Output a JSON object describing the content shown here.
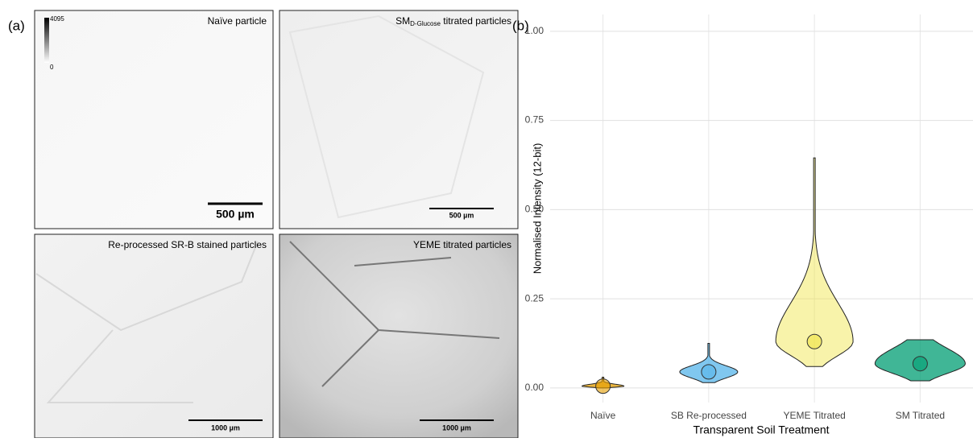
{
  "panel_a": {
    "label": "(a)",
    "colorbar": {
      "max": 4095,
      "min": 0
    },
    "images": [
      {
        "title": "Naïve particle",
        "scale_bar": "500 µm"
      },
      {
        "title_main": "SM",
        "title_sub": "D-Glucose",
        "title_rest": " titrated particles",
        "scale_bar": "500 µm"
      },
      {
        "title": "Re-processed SR-B stained particles",
        "scale_bar": "1000 µm"
      },
      {
        "title": "YEME titrated particles",
        "scale_bar": "1000 µm"
      }
    ]
  },
  "chart_data": {
    "type": "violin",
    "label": "(b)",
    "x_label": "Transparent Soil Treatment",
    "y_label": "Normalised Intensity (12-bit)",
    "categories": [
      "Naïve",
      "SB Re-processed",
      "YEME Titrated",
      "SM Titrated"
    ],
    "colors": [
      "#e69f00",
      "#56b4e9",
      "#f0e442",
      "#009e73"
    ],
    "min": [
      0,
      0.015,
      0.06,
      0.02
    ],
    "max": [
      0.03,
      0.125,
      0.645,
      0.135
    ],
    "mean": [
      0.005,
      0.045,
      0.13,
      0.068
    ],
    "ylim": [
      -0.041,
      1.047
    ],
    "yticks": [
      {
        "value": 0,
        "label": "0.00"
      },
      {
        "value": 0.25,
        "label": "0.25"
      },
      {
        "value": 0.5,
        "label": "0.50"
      },
      {
        "value": 0.75,
        "label": "0.75"
      },
      {
        "value": 1,
        "label": "1.00"
      }
    ],
    "grid": true
  }
}
